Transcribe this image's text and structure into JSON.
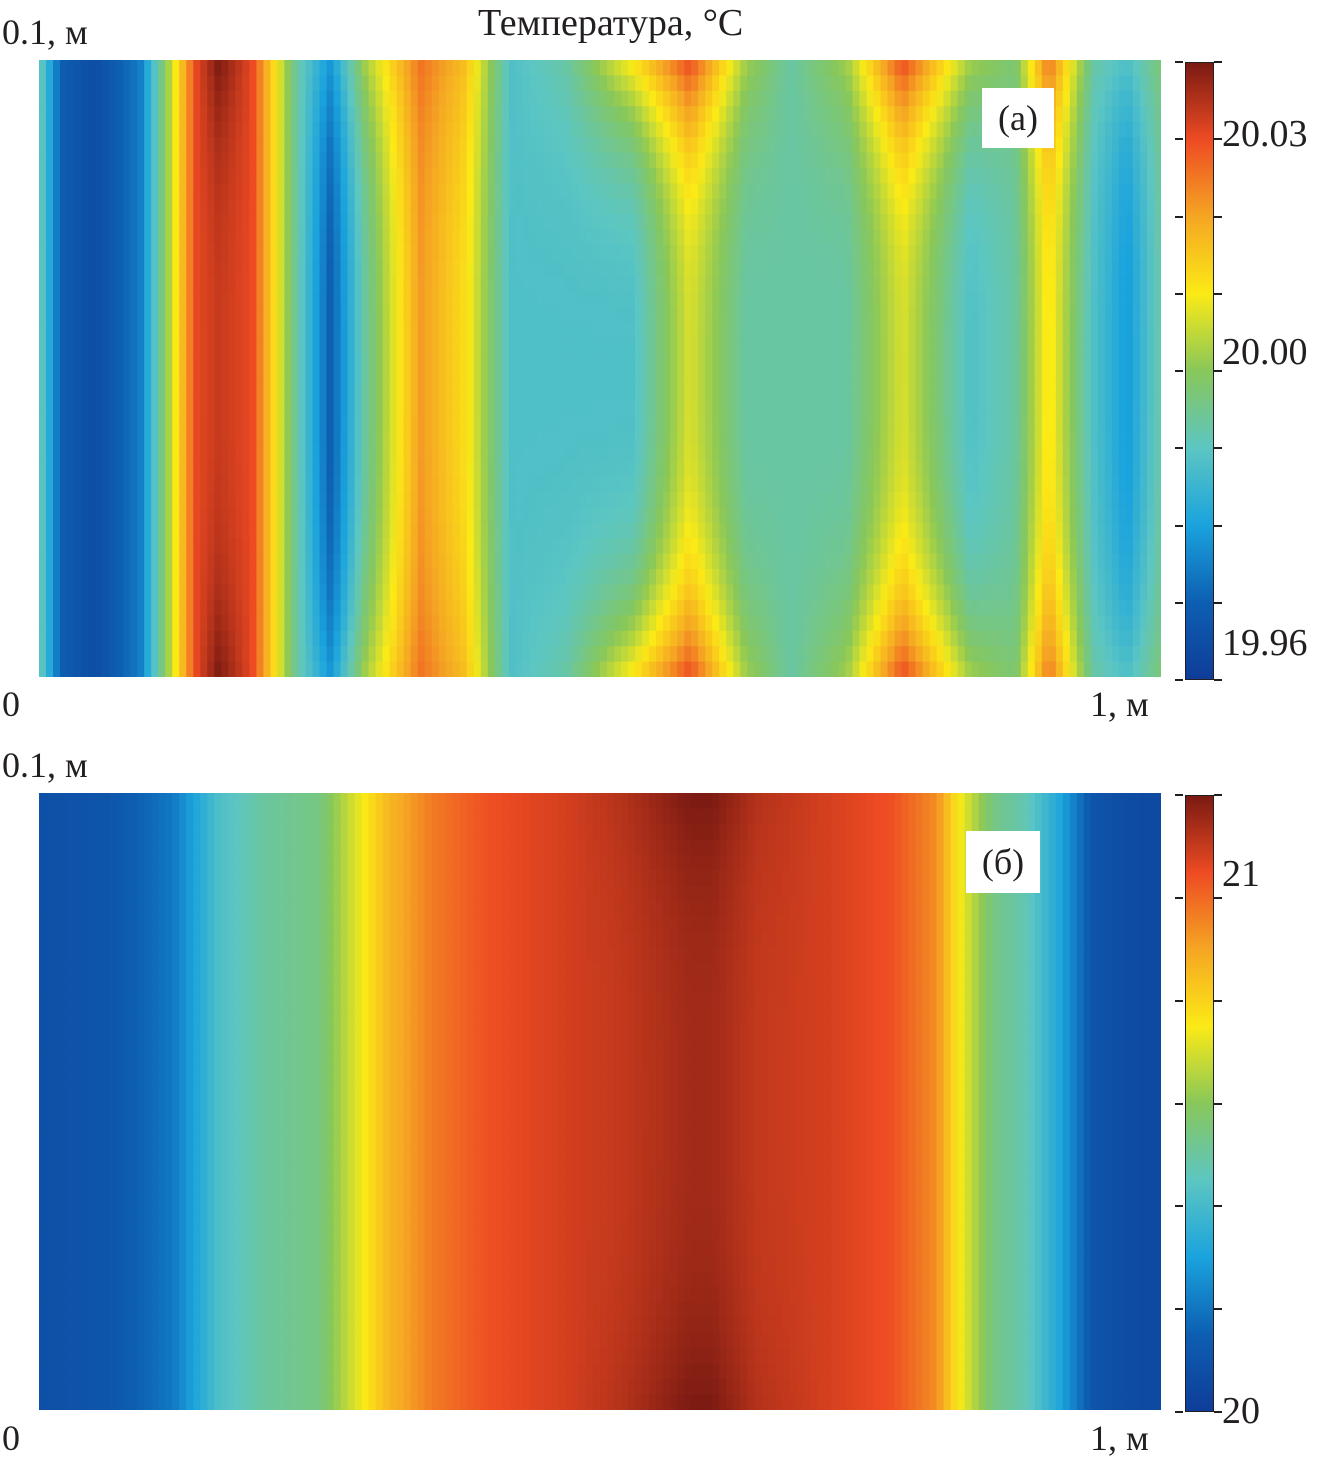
{
  "chart_data": [
    {
      "type": "heatmap",
      "panel_label": "(а)",
      "title": "Температура, °C",
      "x_start_label": "0",
      "x_end_label": "1, м",
      "y_top_label": "0.1, м",
      "colorbar": {
        "min": 19.955,
        "max": 20.04,
        "tick_labels": [
          "20.03",
          "20.00",
          "19.96"
        ],
        "tick_values": [
          20.03,
          20.0,
          19.96
        ]
      },
      "colormap": [
        "#0f3d99",
        "#0d5fb2",
        "#1aa3dd",
        "#5cc6c2",
        "#88c75a",
        "#fbea16",
        "#f5a623",
        "#ee4b23",
        "#7a1a12"
      ],
      "field": {
        "x_m": [
          0.0,
          0.02,
          0.05,
          0.09,
          0.14,
          0.16,
          0.19,
          0.23,
          0.26,
          0.29,
          0.34,
          0.38,
          0.42,
          0.47,
          0.53,
          0.58,
          0.63,
          0.67,
          0.72,
          0.77,
          0.83,
          0.87,
          0.9,
          0.94,
          0.97,
          1.0
        ],
        "y_center_c": [
          19.99,
          19.965,
          19.96,
          19.97,
          20.03,
          20.033,
          20.03,
          19.99,
          19.965,
          19.99,
          20.02,
          20.01,
          19.985,
          19.985,
          19.985,
          20.005,
          19.99,
          19.99,
          19.99,
          20.005,
          19.985,
          19.99,
          20.01,
          19.985,
          19.975,
          19.99
        ],
        "y_edge_c": [
          19.99,
          19.965,
          19.96,
          19.97,
          20.03,
          20.04,
          20.03,
          19.99,
          19.975,
          20.0,
          20.025,
          20.015,
          19.985,
          19.99,
          20.01,
          20.03,
          20.0,
          19.99,
          20.0,
          20.03,
          20.0,
          19.995,
          20.025,
          19.99,
          19.985,
          19.995
        ]
      }
    },
    {
      "type": "heatmap",
      "panel_label": "(б)",
      "x_start_label": "0",
      "x_end_label": "1, м",
      "y_top_label": "0.1, м",
      "colorbar": {
        "min": 20.0,
        "max": 21.15,
        "tick_labels": [
          "21",
          "20"
        ],
        "tick_values": [
          21,
          20
        ]
      },
      "colormap": [
        "#0f3d99",
        "#0d5fb2",
        "#1aa3dd",
        "#5cc6c2",
        "#88c75a",
        "#fbea16",
        "#f5a623",
        "#ee4b23",
        "#7a1a12"
      ],
      "field": {
        "x_m": [
          0.0,
          0.06,
          0.12,
          0.16,
          0.2,
          0.25,
          0.29,
          0.31,
          0.35,
          0.4,
          0.47,
          0.52,
          0.58,
          0.6,
          0.64,
          0.7,
          0.76,
          0.8,
          0.82,
          0.85,
          0.88,
          0.91,
          0.94,
          0.97,
          1.0
        ],
        "y_center_c": [
          20.08,
          20.1,
          20.2,
          20.4,
          20.48,
          20.52,
          20.72,
          20.82,
          20.93,
          21.0,
          21.04,
          21.06,
          21.1,
          21.1,
          21.06,
          21.04,
          21.0,
          20.9,
          20.72,
          20.52,
          20.45,
          20.3,
          20.1,
          20.06,
          20.05
        ],
        "y_edge_c": [
          20.08,
          20.1,
          20.2,
          20.4,
          20.48,
          20.52,
          20.72,
          20.82,
          20.93,
          21.0,
          21.04,
          21.08,
          21.15,
          21.15,
          21.08,
          21.04,
          21.0,
          20.9,
          20.72,
          20.52,
          20.45,
          20.3,
          20.1,
          20.06,
          20.05
        ]
      }
    }
  ]
}
